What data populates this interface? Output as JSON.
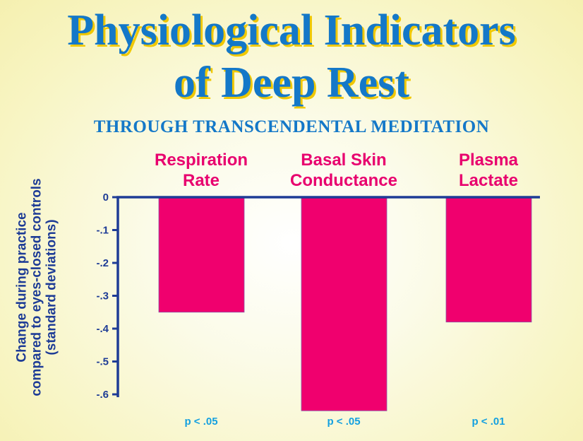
{
  "title_line1": "Physiological Indicators",
  "title_line2": "of Deep Rest",
  "subtitle": "THROUGH TRANSCENDENTAL MEDITATION",
  "chart_data": {
    "type": "bar",
    "title": "Physiological Indicators of Deep Rest",
    "categories": [
      {
        "line1": "Respiration",
        "line2": "Rate"
      },
      {
        "line1": "Basal Skin",
        "line2": "Conductance"
      },
      {
        "line1": "Plasma",
        "line2": "Lactate"
      }
    ],
    "values": [
      -0.35,
      -0.65,
      -0.38
    ],
    "significance": [
      "p < .05",
      "p < .05",
      "p < .01"
    ],
    "ylabel": [
      "Change during practice",
      "compared to eyes-closed controls",
      "(standard deviations)"
    ],
    "ylim": [
      -0.6,
      0
    ],
    "yticks": [
      0,
      -0.1,
      -0.2,
      -0.3,
      -0.4,
      -0.5,
      -0.6
    ],
    "ytick_labels": [
      "0",
      "-.1",
      "-.2",
      "-.3",
      "-.4",
      "-.5",
      "-.6"
    ],
    "bar_color": "#f0006e",
    "axis_color": "#1e3c96"
  }
}
